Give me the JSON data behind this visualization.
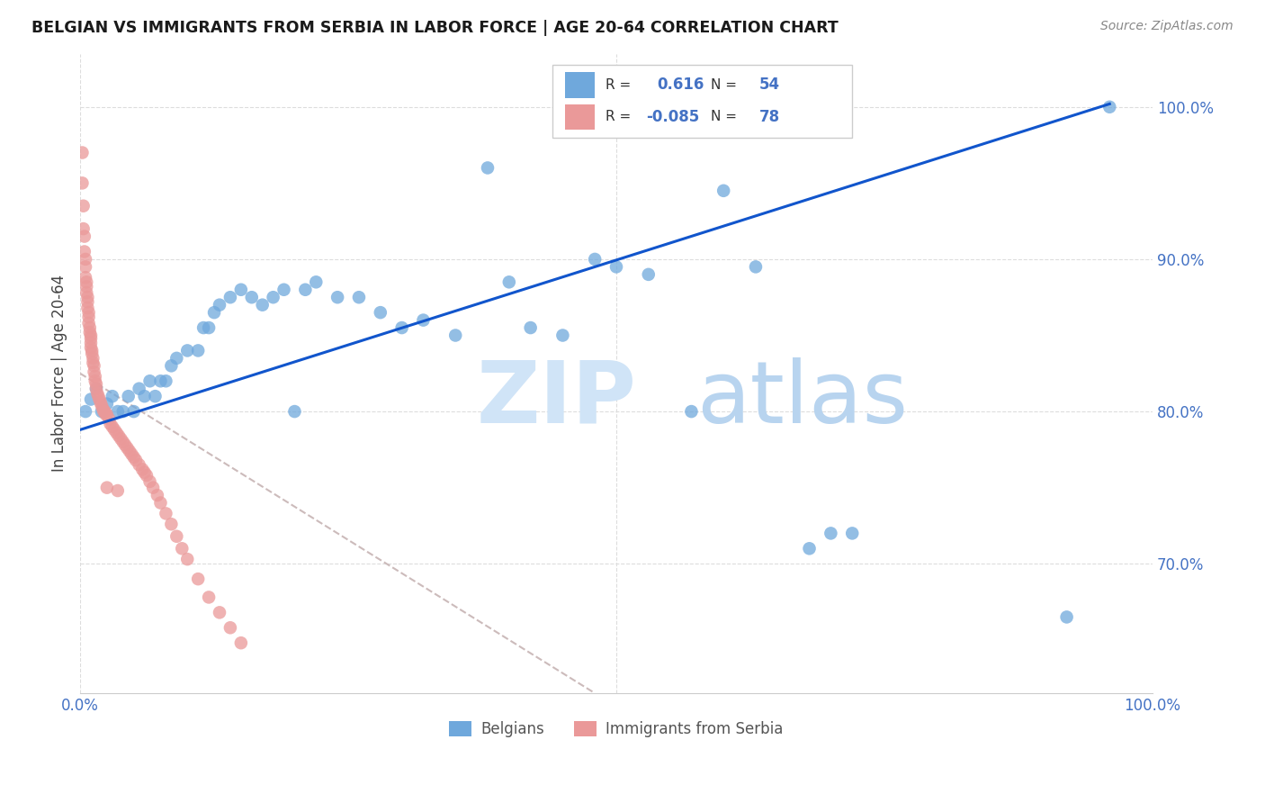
{
  "title": "BELGIAN VS IMMIGRANTS FROM SERBIA IN LABOR FORCE | AGE 20-64 CORRELATION CHART",
  "source": "Source: ZipAtlas.com",
  "ylabel": "In Labor Force | Age 20-64",
  "xlim": [
    0.0,
    1.0
  ],
  "ylim": [
    0.615,
    1.035
  ],
  "x_ticks": [
    0.0,
    0.2,
    0.4,
    0.6,
    0.8,
    1.0
  ],
  "x_tick_labels": [
    "0.0%",
    "",
    "",
    "",
    "",
    "100.0%"
  ],
  "y_ticks_right": [
    0.7,
    0.8,
    0.9,
    1.0
  ],
  "y_tick_labels_right": [
    "70.0%",
    "80.0%",
    "90.0%",
    "100.0%"
  ],
  "legend_label_blue": "Belgians",
  "legend_label_pink": "Immigrants from Serbia",
  "R_blue": "0.616",
  "N_blue": "54",
  "R_pink": "-0.085",
  "N_pink": "78",
  "blue_color": "#6fa8dc",
  "pink_color": "#ea9999",
  "blue_line_color": "#1155cc",
  "pink_line_color": "#ccbbbb",
  "blue_scatter_x": [
    0.005,
    0.01,
    0.015,
    0.02,
    0.025,
    0.03,
    0.035,
    0.04,
    0.045,
    0.05,
    0.055,
    0.06,
    0.065,
    0.07,
    0.075,
    0.08,
    0.085,
    0.09,
    0.1,
    0.11,
    0.115,
    0.12,
    0.125,
    0.13,
    0.14,
    0.15,
    0.16,
    0.17,
    0.18,
    0.19,
    0.2,
    0.21,
    0.22,
    0.24,
    0.26,
    0.28,
    0.3,
    0.32,
    0.35,
    0.38,
    0.4,
    0.42,
    0.45,
    0.48,
    0.5,
    0.53,
    0.57,
    0.6,
    0.63,
    0.68,
    0.7,
    0.72,
    0.92,
    0.96
  ],
  "blue_scatter_y": [
    0.8,
    0.808,
    0.815,
    0.8,
    0.805,
    0.81,
    0.8,
    0.8,
    0.81,
    0.8,
    0.815,
    0.81,
    0.82,
    0.81,
    0.82,
    0.82,
    0.83,
    0.835,
    0.84,
    0.84,
    0.855,
    0.855,
    0.865,
    0.87,
    0.875,
    0.88,
    0.875,
    0.87,
    0.875,
    0.88,
    0.8,
    0.88,
    0.885,
    0.875,
    0.875,
    0.865,
    0.855,
    0.86,
    0.85,
    0.96,
    0.885,
    0.855,
    0.85,
    0.9,
    0.895,
    0.89,
    0.8,
    0.945,
    0.895,
    0.71,
    0.72,
    0.72,
    0.665,
    1.0
  ],
  "pink_scatter_x": [
    0.002,
    0.002,
    0.003,
    0.003,
    0.004,
    0.004,
    0.005,
    0.005,
    0.005,
    0.006,
    0.006,
    0.006,
    0.007,
    0.007,
    0.007,
    0.008,
    0.008,
    0.008,
    0.009,
    0.009,
    0.01,
    0.01,
    0.01,
    0.01,
    0.011,
    0.011,
    0.012,
    0.012,
    0.013,
    0.013,
    0.014,
    0.014,
    0.015,
    0.015,
    0.016,
    0.017,
    0.018,
    0.019,
    0.02,
    0.021,
    0.022,
    0.023,
    0.024,
    0.025,
    0.027,
    0.028,
    0.03,
    0.032,
    0.034,
    0.036,
    0.038,
    0.04,
    0.042,
    0.044,
    0.046,
    0.048,
    0.05,
    0.052,
    0.055,
    0.058,
    0.062,
    0.065,
    0.068,
    0.072,
    0.075,
    0.08,
    0.085,
    0.09,
    0.095,
    0.1,
    0.11,
    0.12,
    0.13,
    0.14,
    0.15,
    0.025,
    0.035,
    0.06
  ],
  "pink_scatter_y": [
    0.97,
    0.95,
    0.935,
    0.92,
    0.915,
    0.905,
    0.9,
    0.895,
    0.888,
    0.885,
    0.882,
    0.878,
    0.875,
    0.872,
    0.868,
    0.865,
    0.862,
    0.858,
    0.855,
    0.852,
    0.85,
    0.848,
    0.845,
    0.842,
    0.84,
    0.838,
    0.835,
    0.832,
    0.83,
    0.826,
    0.823,
    0.82,
    0.818,
    0.815,
    0.812,
    0.81,
    0.808,
    0.806,
    0.804,
    0.802,
    0.8,
    0.8,
    0.798,
    0.798,
    0.795,
    0.792,
    0.79,
    0.788,
    0.786,
    0.784,
    0.782,
    0.78,
    0.778,
    0.776,
    0.774,
    0.772,
    0.77,
    0.768,
    0.765,
    0.762,
    0.758,
    0.754,
    0.75,
    0.745,
    0.74,
    0.733,
    0.726,
    0.718,
    0.71,
    0.703,
    0.69,
    0.678,
    0.668,
    0.658,
    0.648,
    0.75,
    0.748,
    0.76
  ],
  "watermark_zip": "ZIP",
  "watermark_atlas": "atlas",
  "background_color": "#ffffff",
  "grid_color": "#dddddd"
}
